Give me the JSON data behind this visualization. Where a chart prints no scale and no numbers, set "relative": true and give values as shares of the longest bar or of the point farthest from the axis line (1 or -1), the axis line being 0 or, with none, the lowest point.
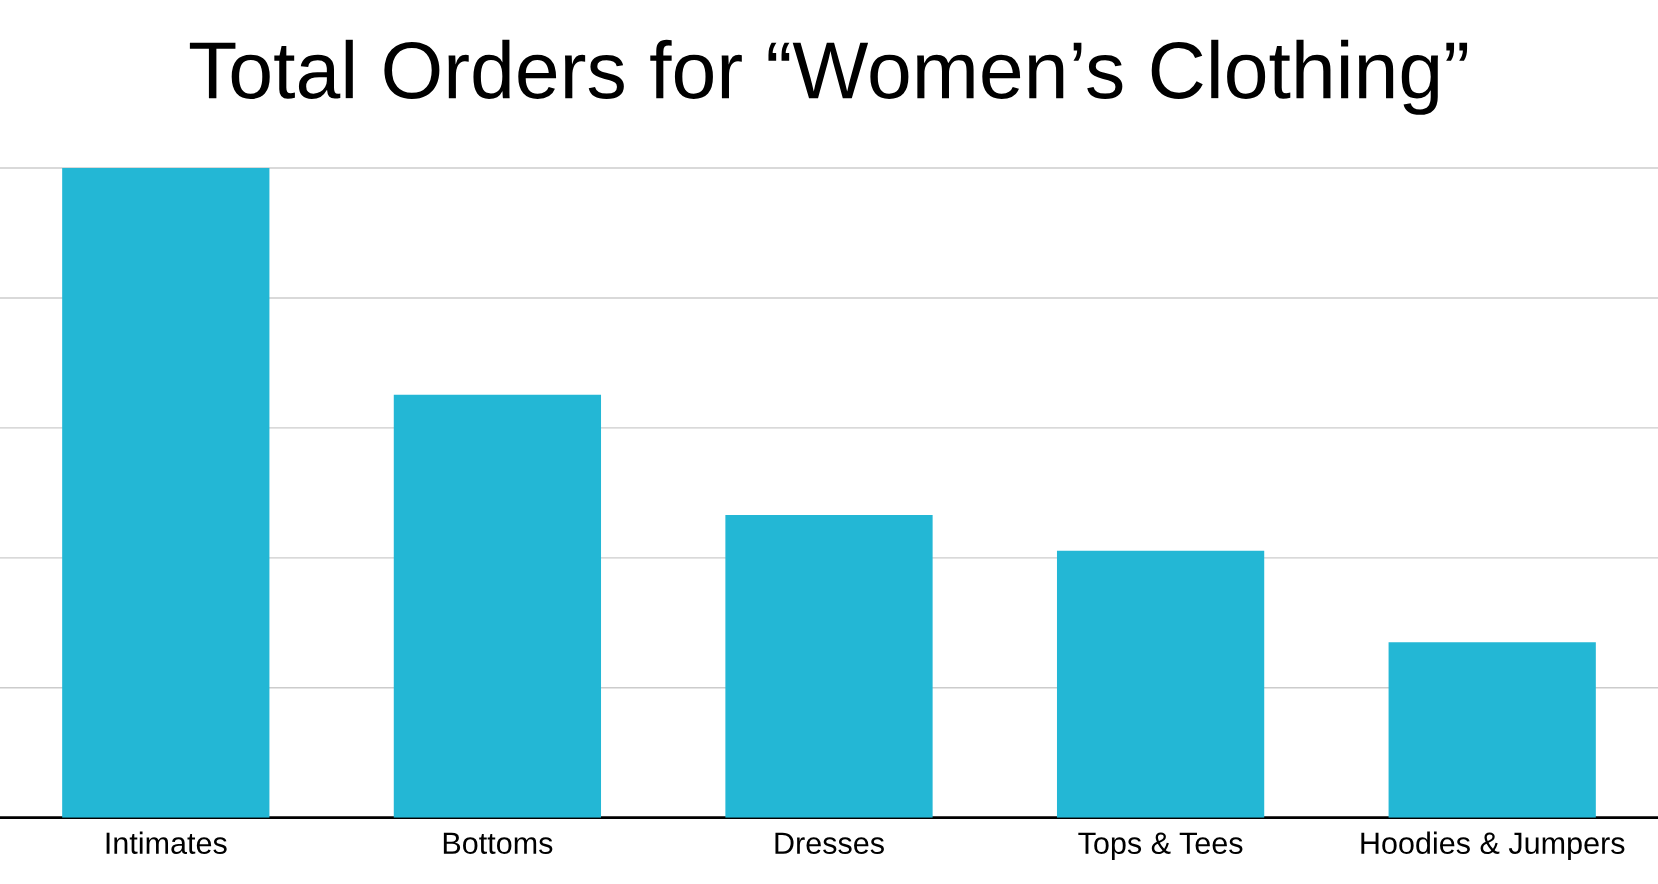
{
  "chart_data": {
    "type": "bar",
    "title": "Total Orders for “Women’s Clothing”",
    "categories": [
      "Intimates",
      "Bottoms",
      "Dresses",
      "Tops & Tees",
      "Hoodies & Jumpers"
    ],
    "values": [
      1,
      0.651,
      0.466,
      0.411,
      0.27
    ],
    "color": "#23b7d5",
    "relative": true,
    "grid": "y"
  }
}
